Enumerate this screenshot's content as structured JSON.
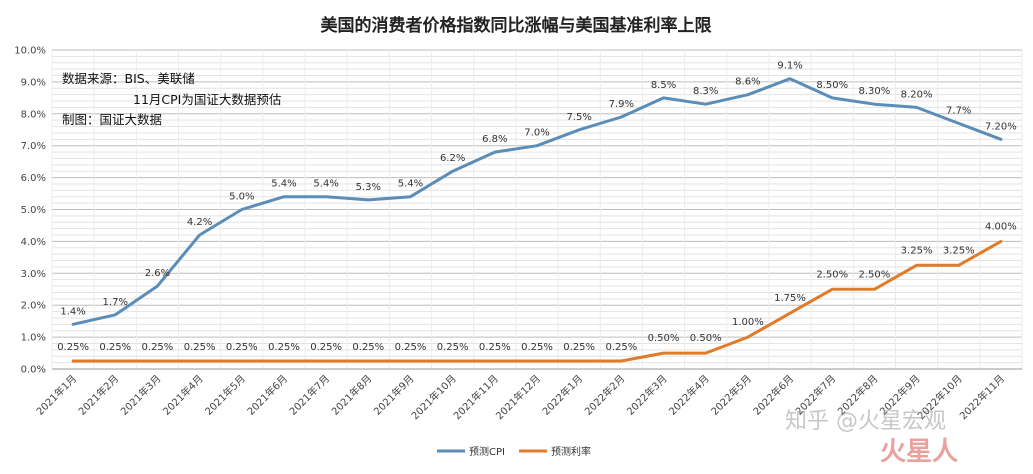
{
  "chart_data": {
    "type": "line",
    "title": "美国的消费者价格指数同比涨幅与美国基准利率上限",
    "x": [
      "2021年1月",
      "2021年2月",
      "2021年3月",
      "2021年4月",
      "2021年5月",
      "2021年6月",
      "2021年7月",
      "2021年8月",
      "2021年9月",
      "2021年10月",
      "2021年11月",
      "2021年12月",
      "2022年1月",
      "2022年2月",
      "2022年3月",
      "2022年4月",
      "2022年5月",
      "2022年6月",
      "2022年7月",
      "2022年8月",
      "2022年9月",
      "2022年10月",
      "2022年11月"
    ],
    "y_ticks": [
      "0.0%",
      "1.0%",
      "2.0%",
      "3.0%",
      "4.0%",
      "5.0%",
      "6.0%",
      "7.0%",
      "8.0%",
      "9.0%",
      "10.0%"
    ],
    "ylim": [
      0,
      10
    ],
    "grid": true,
    "legend_position": "bottom",
    "series": [
      {
        "name": "预测CPI",
        "color": "#5b8db8",
        "values": [
          1.4,
          1.7,
          2.6,
          4.2,
          5.0,
          5.4,
          5.4,
          5.3,
          5.4,
          6.2,
          6.8,
          7.0,
          7.5,
          7.9,
          8.5,
          8.3,
          8.6,
          9.1,
          8.5,
          8.3,
          8.2,
          7.7,
          7.2
        ],
        "labels": [
          "1.4%",
          "1.7%",
          "2.6%",
          "4.2%",
          "5.0%",
          "5.4%",
          "5.4%",
          "5.3%",
          "5.4%",
          "6.2%",
          "6.8%",
          "7.0%",
          "7.5%",
          "7.9%",
          "8.5%",
          "8.3%",
          "8.6%",
          "9.1%",
          "8.50%",
          "8.30%",
          "8.20%",
          "7.7%",
          "7.20%"
        ]
      },
      {
        "name": "预测利率",
        "color": "#e07b2a",
        "values": [
          0.25,
          0.25,
          0.25,
          0.25,
          0.25,
          0.25,
          0.25,
          0.25,
          0.25,
          0.25,
          0.25,
          0.25,
          0.25,
          0.25,
          0.5,
          0.5,
          1.0,
          1.75,
          2.5,
          2.5,
          3.25,
          3.25,
          4.0
        ],
        "labels": [
          "0.25%",
          "0.25%",
          "0.25%",
          "0.25%",
          "0.25%",
          "0.25%",
          "0.25%",
          "0.25%",
          "0.25%",
          "0.25%",
          "0.25%",
          "0.25%",
          "0.25%",
          "0.25%",
          "0.50%",
          "0.50%",
          "1.00%",
          "1.75%",
          "2.50%",
          "2.50%",
          "3.25%",
          "3.25%",
          "4.00%"
        ]
      }
    ],
    "annotations": [
      "数据来源：BIS、美联储",
      "11月CPI为国证大数据预估",
      "制图：国证大数据"
    ]
  },
  "watermark": {
    "line1": "知乎 @火星宏观",
    "line2": "火星人"
  }
}
